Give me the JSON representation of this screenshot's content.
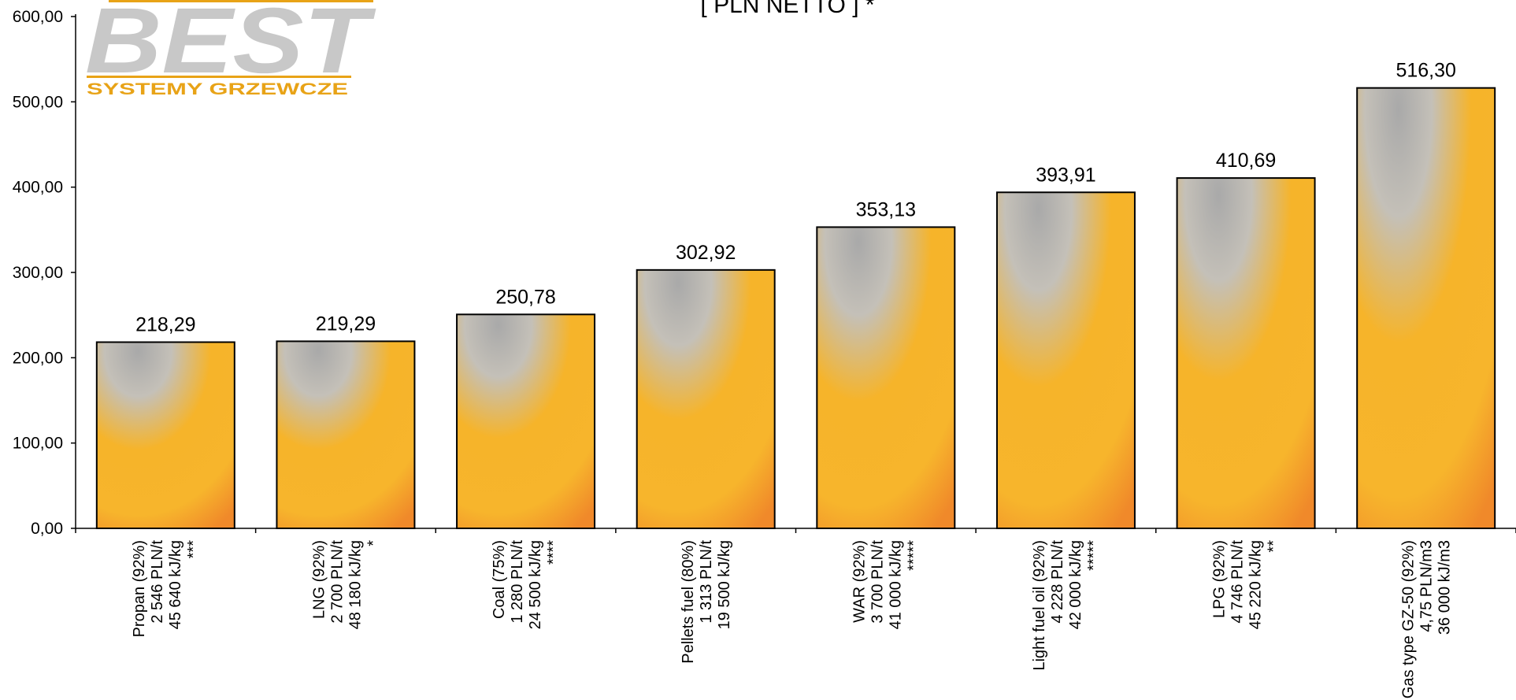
{
  "chart_data": {
    "type": "bar",
    "title": "[ PLN NETTO ] *",
    "ylim": [
      0,
      600
    ],
    "yticks": [
      "0,00",
      "100,00",
      "200,00",
      "300,00",
      "400,00",
      "500,00",
      "600,00"
    ],
    "ytick_values": [
      0,
      100,
      200,
      300,
      400,
      500,
      600
    ],
    "grid": false,
    "values": [
      218.29,
      219.29,
      250.78,
      302.92,
      353.13,
      393.91,
      410.69,
      516.3
    ],
    "value_labels": [
      "218,29",
      "219,29",
      "250,78",
      "302,92",
      "353,13",
      "393,91",
      "410,69",
      "516,30"
    ],
    "categories": [
      [
        "Propan (92%)",
        "2 546 PLN/t",
        "45 640 kJ/kg",
        "***"
      ],
      [
        "LNG (92%)",
        "2 700 PLN/t",
        "48 180 kJ/kg",
        "*"
      ],
      [
        "Coal (75%)",
        "1 280 PLN/t",
        "24 500 kJ/kg",
        "****"
      ],
      [
        "Pellets fuel (80%)",
        "1 313 PLN/t",
        "19 500 kJ/kg"
      ],
      [
        "WAR (92%)",
        "3 700 PLN/t",
        "41 000 kJ/kg",
        "*****"
      ],
      [
        "Light fuel oil (92%)",
        "4 228 PLN/t",
        "42 000 kJ/kg",
        "*****"
      ],
      [
        "LPG (92%)",
        "4 746 PLN/t",
        "45 220 kJ/kg",
        "**"
      ],
      [
        "Gas type GZ-50 (92%)",
        "4,75 PLN/m3",
        "36 000 kJ/m3"
      ]
    ],
    "colors": {
      "bar_top": "#b8b8b8",
      "bar_mid": "#f7b52b",
      "bar_bottom": "#f08a2a",
      "bar_stroke": "#000000"
    }
  },
  "logo": {
    "name": "BEST",
    "tagline": "SYSTEMY GRZEWCZE",
    "colors": {
      "wordmark": "#c8c8c8",
      "tagline": "#e8a317",
      "rule": "#e8a317"
    }
  }
}
